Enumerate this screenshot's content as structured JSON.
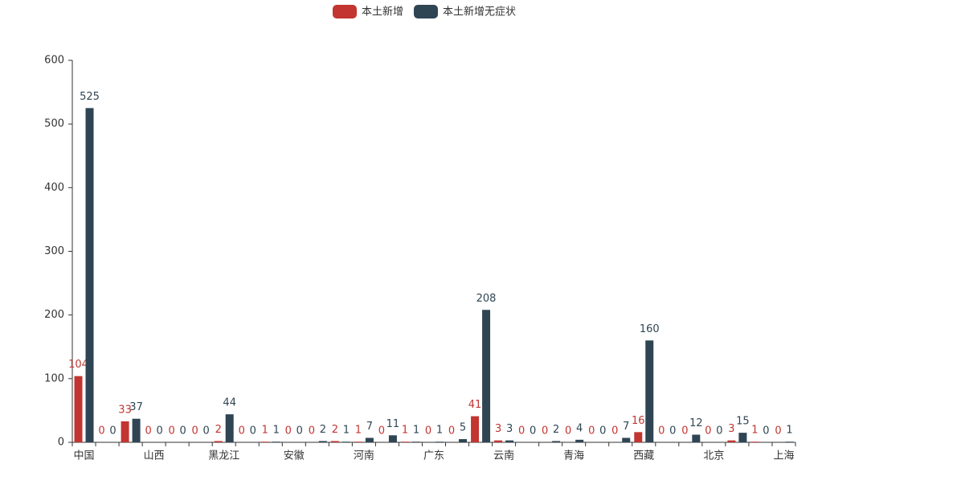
{
  "chart_data": {
    "type": "bar",
    "categories": [
      "中国",
      null,
      null,
      "山西",
      null,
      null,
      "黑龙江",
      null,
      null,
      "安徽",
      null,
      null,
      "河南",
      null,
      null,
      "广东",
      null,
      null,
      "云南",
      null,
      null,
      "青海",
      null,
      null,
      "西藏",
      null,
      null,
      "北京",
      null,
      null,
      "上海"
    ],
    "series": [
      {
        "name": "本土新增",
        "color": "#c23531",
        "values": [
          104,
          0,
          33,
          0,
          0,
          0,
          2,
          0,
          1,
          0,
          0,
          2,
          1,
          0,
          1,
          0,
          0,
          41,
          3,
          0,
          0,
          0,
          0,
          0,
          16,
          0,
          0,
          0,
          3,
          1,
          0
        ]
      },
      {
        "name": "本土新增无症状",
        "color": "#2f4554",
        "values": [
          525,
          0,
          37,
          0,
          0,
          0,
          44,
          0,
          1,
          0,
          2,
          1,
          7,
          11,
          1,
          1,
          5,
          208,
          3,
          0,
          2,
          4,
          0,
          7,
          160,
          0,
          12,
          0,
          15,
          0,
          1
        ]
      }
    ],
    "ylim": [
      0,
      600
    ],
    "yticks": [
      0,
      100,
      200,
      300,
      400,
      500,
      600
    ],
    "legend": "top"
  }
}
